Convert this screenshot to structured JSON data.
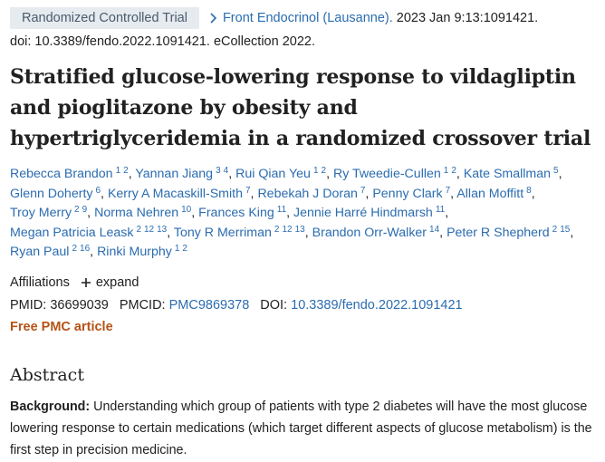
{
  "badge": "Randomized Controlled Trial",
  "journal": {
    "name": "Front Endocrinol (Lausanne).",
    "citation": "2023 Jan 9:13:1091421.",
    "doi": "doi: 10.3389/fendo.2022.1091421. eCollection 2022."
  },
  "title": "Stratified glucose-lowering response to vildagliptin and pioglitazone by obesity and hypertriglyceridemia in a randomized crossover trial",
  "authors": [
    {
      "name": "Rebecca Brandon",
      "affiliations": [
        "1",
        "2"
      ]
    },
    {
      "name": "Yannan Jiang",
      "affiliations": [
        "3",
        "4"
      ]
    },
    {
      "name": "Rui Qian Yeu",
      "affiliations": [
        "1",
        "2"
      ]
    },
    {
      "name": "Ry Tweedie-Cullen",
      "affiliations": [
        "1",
        "2"
      ]
    },
    {
      "name": "Kate Smallman",
      "affiliations": [
        "5"
      ]
    },
    {
      "name": "Glenn Doherty",
      "affiliations": [
        "6"
      ]
    },
    {
      "name": "Kerry A Macaskill-Smith",
      "affiliations": [
        "7"
      ]
    },
    {
      "name": "Rebekah J Doran",
      "affiliations": [
        "7"
      ]
    },
    {
      "name": "Penny Clark",
      "affiliations": [
        "7"
      ]
    },
    {
      "name": "Allan Moffitt",
      "affiliations": [
        "8"
      ]
    },
    {
      "name": "Troy Merry",
      "affiliations": [
        "2",
        "9"
      ]
    },
    {
      "name": "Norma Nehren",
      "affiliations": [
        "10"
      ]
    },
    {
      "name": "Frances King",
      "affiliations": [
        "11"
      ]
    },
    {
      "name": "Jennie Harré Hindmarsh",
      "affiliations": [
        "11"
      ]
    },
    {
      "name": "Megan Patricia Leask",
      "affiliations": [
        "2",
        "12",
        "13"
      ]
    },
    {
      "name": "Tony R Merriman",
      "affiliations": [
        "2",
        "12",
        "13"
      ]
    },
    {
      "name": "Brandon Orr-Walker",
      "affiliations": [
        "14"
      ]
    },
    {
      "name": "Peter R Shepherd",
      "affiliations": [
        "2",
        "15"
      ]
    },
    {
      "name": "Ryan Paul",
      "affiliations": [
        "2",
        "16"
      ]
    },
    {
      "name": "Rinki Murphy",
      "affiliations": [
        "1",
        "2"
      ]
    }
  ],
  "affiliations": {
    "label": "Affiliations",
    "toggle": "expand"
  },
  "ids": [
    {
      "label": "PMID:",
      "value": "36699039"
    },
    {
      "label": "PMCID:",
      "value": "PMC9869378"
    },
    {
      "label": "DOI:",
      "value": "10.3389/fendo.2022.1091421"
    }
  ],
  "free": "Free PMC article",
  "abstract": {
    "heading": "Abstract",
    "label": "Background:",
    "text": "Understanding which group of patients with type 2 diabetes will have the most glucose lowering response to certain medications (which target different aspects of glucose metabolism) is the first step in precision medicine."
  }
}
